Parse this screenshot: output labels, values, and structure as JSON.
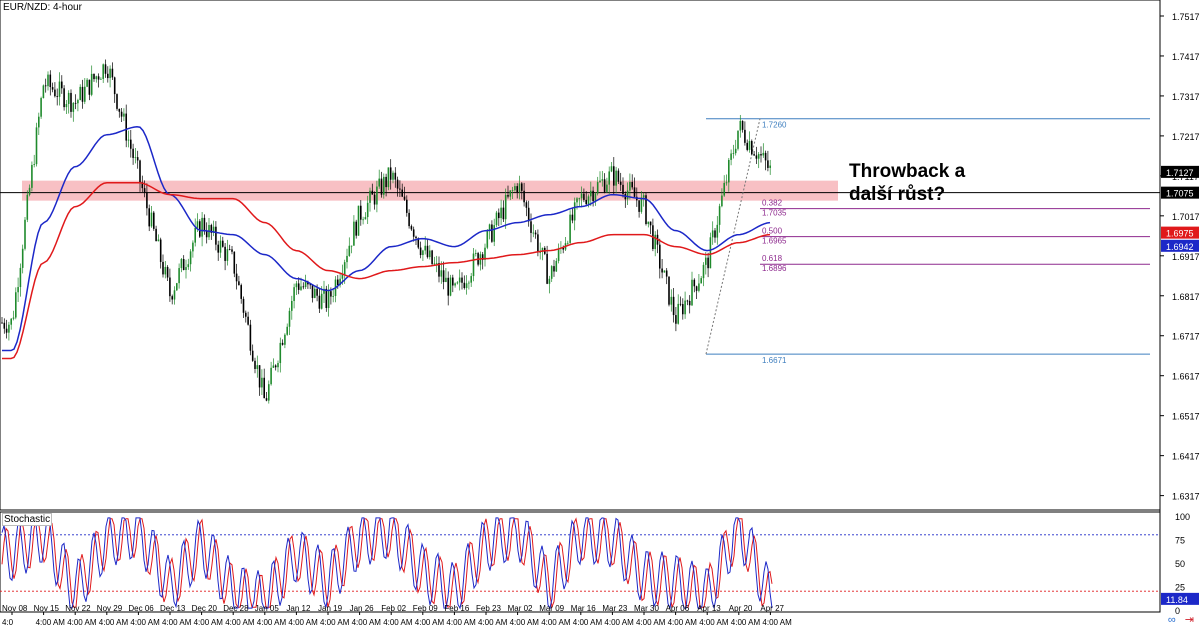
{
  "header": {
    "symbol": "EUR/NZD: 4-hour"
  },
  "annotation": {
    "line1": "Throwback a",
    "line2": "další růst?"
  },
  "stochastic": {
    "label": "Stochastic",
    "overbought": 80,
    "oversold": 20,
    "value": "11.84",
    "scale": [
      "100",
      "75",
      "50",
      "25",
      "0"
    ]
  },
  "price_axis": {
    "ticks": [
      "1.7517",
      "1.7417",
      "1.7317",
      "1.7217",
      "1.7117",
      "1.7017",
      "1.6917",
      "1.6817",
      "1.6717",
      "1.6617",
      "1.6517",
      "1.6417",
      "1.6317"
    ]
  },
  "price_tags": [
    {
      "text": "1.7127",
      "value": 1.7127,
      "bg": "#000000",
      "fg": "#ffffff"
    },
    {
      "text": "1.7075",
      "value": 1.7075,
      "bg": "#000000",
      "fg": "#ffffff"
    },
    {
      "text": "1.6975",
      "value": 1.6975,
      "bg": "#e0191b",
      "fg": "#ffffff"
    },
    {
      "text": "1.6942",
      "value": 1.6942,
      "bg": "#1c28c8",
      "fg": "#ffffff"
    }
  ],
  "fibonacci": {
    "top": "1.7260",
    "bottom": "1.6671",
    "levels": [
      {
        "ratio": "0.382",
        "price": "1.7035"
      },
      {
        "ratio": "0.500",
        "price": "1.6965"
      },
      {
        "ratio": "0.618",
        "price": "1.6896"
      }
    ]
  },
  "date_axis": {
    "labels": [
      "Nov 08",
      "Nov 15",
      "Nov 22",
      "Nov 29",
      "Dec 06",
      "Dec 13",
      "Dec 20",
      "Dec 28",
      "Jan 05",
      "Jan 12",
      "Jan 19",
      "Jan 26",
      "Feb 02",
      "Feb 09",
      "Feb 16",
      "Feb 23",
      "Mar 02",
      "Mar 09",
      "Mar 16",
      "Mar 23",
      "Mar 30",
      "Apr 06",
      "Apr 13",
      "Apr 20",
      "Apr 27"
    ],
    "time_label": "4:00 AM",
    "first_label": "4:0"
  },
  "icons": [
    "link-icon",
    "arrow-right-icon"
  ],
  "colors": {
    "ma_fast": "#1c28c8",
    "ma_slow": "#e0191b",
    "zone": "#f28c94",
    "fib": "#3f7fbf",
    "fib_text": "#8e2a8e",
    "stoch_k": "#1c28c8",
    "stoch_d": "#e0191b",
    "bull": "#1f8a2c",
    "bear": "#000000"
  },
  "chart_data": {
    "type": "candlestick",
    "title": "EUR/NZD: 4-hour",
    "xlabel": "",
    "ylabel": "",
    "ylim": [
      1.6281,
      1.7557
    ],
    "x": [
      "Nov 08",
      "Nov 15",
      "Nov 22",
      "Nov 29",
      "Dec 06",
      "Dec 13",
      "Dec 20",
      "Dec 28",
      "Jan 05",
      "Jan 12",
      "Jan 19",
      "Jan 26",
      "Feb 02",
      "Feb 09",
      "Feb 16",
      "Feb 23",
      "Mar 02",
      "Mar 09",
      "Mar 16",
      "Mar 23",
      "Mar 30",
      "Apr 06",
      "Apr 13",
      "Apr 20",
      "Apr 27"
    ],
    "series": [
      {
        "name": "",
        "values": [
          1.675,
          1.735,
          1.73,
          1.74,
          1.712,
          1.682,
          1.7,
          1.69,
          1.655,
          1.685,
          1.68,
          1.702,
          1.712,
          1.693,
          1.682,
          1.695,
          1.71,
          1.686,
          1.706,
          1.712,
          1.704,
          1.676,
          1.69,
          1.724,
          1.713
        ]
      },
      {
        "name": "",
        "values": [
          1.668,
          1.7,
          1.714,
          1.722,
          1.724,
          1.707,
          1.698,
          1.697,
          1.692,
          1.686,
          1.683,
          1.688,
          1.694,
          1.696,
          1.694,
          1.698,
          1.7,
          1.702,
          1.704,
          1.707,
          1.706,
          1.698,
          1.693,
          1.697,
          1.7
        ]
      },
      {
        "name": "",
        "values": [
          1.666,
          1.69,
          1.704,
          1.71,
          1.71,
          1.707,
          1.706,
          1.706,
          1.7,
          1.693,
          1.688,
          1.686,
          1.688,
          1.689,
          1.69,
          1.691,
          1.692,
          1.693,
          1.695,
          1.697,
          1.697,
          1.694,
          1.692,
          1.695,
          1.697
        ]
      }
    ],
    "stochastic": {
      "k": [
        60,
        80,
        20,
        75,
        85,
        25,
        70,
        20,
        10,
        60,
        30,
        75,
        85,
        40,
        20,
        70,
        85,
        25,
        80,
        75,
        35,
        30,
        15,
        90,
        12
      ]
    },
    "support_zone": [
      1.7055,
      1.7105
    ],
    "horizontal_levels": [
      1.726,
      1.7075,
      1.7035,
      1.6965,
      1.6896,
      1.6671
    ],
    "grid": false,
    "legend": "none"
  }
}
